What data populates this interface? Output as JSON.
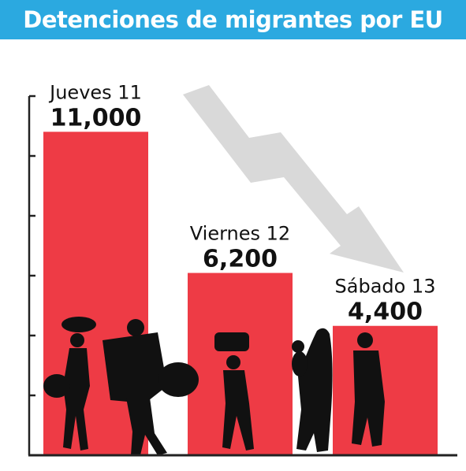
{
  "header": {
    "title": "Detenciones de migrantes por EU"
  },
  "chart_data": {
    "type": "bar",
    "title": "Detenciones de migrantes por EU",
    "categories": [
      "Jueves 11",
      "Viernes 12",
      "Sábado 13"
    ],
    "values": [
      11000,
      6200,
      4400
    ],
    "value_labels": [
      "11,000",
      "6,200",
      "4,400"
    ],
    "ylim": [
      0,
      12000
    ],
    "bar_color": "#ee3b45",
    "axis_color": "#222222",
    "trend_arrow_color": "#d9d9d9",
    "silhouette_color": "#111111"
  }
}
